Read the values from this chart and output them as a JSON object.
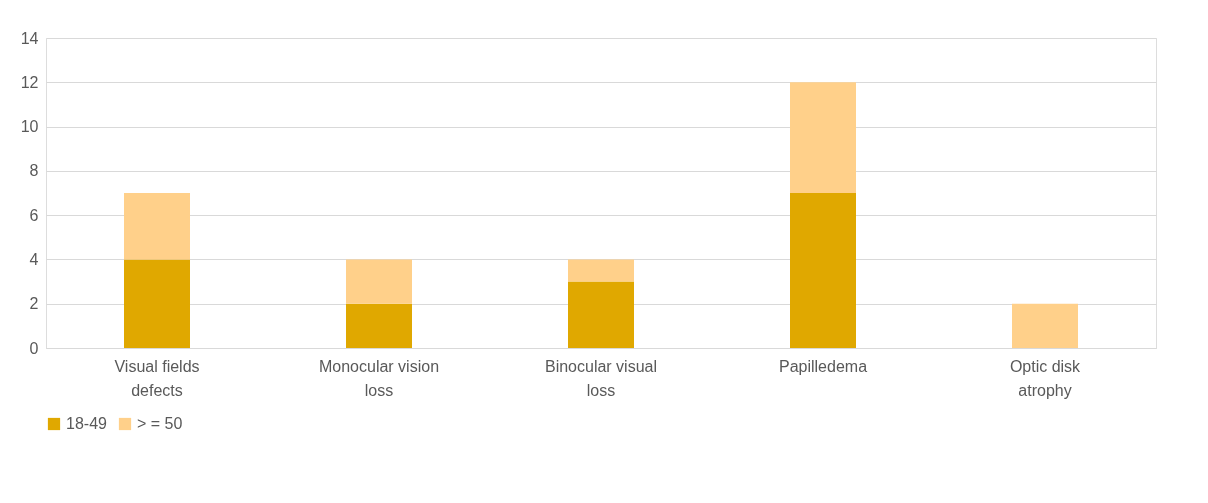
{
  "chart_data": {
    "type": "bar",
    "stacked": true,
    "categories": [
      "Visual fields defects",
      "Monocular vision loss",
      "Binocular visual loss",
      "Papilledema",
      "Optic disk atrophy"
    ],
    "series": [
      {
        "name": "18-49",
        "color": "#e0a800",
        "values": [
          4,
          2,
          3,
          7,
          0
        ]
      },
      {
        "name": "> = 50",
        "color": "#ffd08a",
        "values": [
          3,
          2,
          1,
          5,
          2
        ]
      }
    ],
    "ylim": [
      0,
      14
    ],
    "yticks": [
      0,
      2,
      4,
      6,
      8,
      10,
      12,
      14
    ],
    "grid": "y",
    "legend": "bottom"
  }
}
